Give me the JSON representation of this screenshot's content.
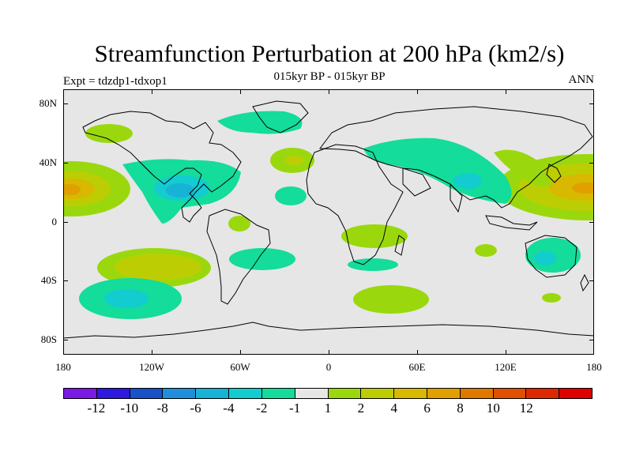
{
  "title": "Streamfunction Perturbation at 200 hPa (km2/s)",
  "subtitle": "015kyr BP - 015kyr BP",
  "left_label": "Expt = tdzdp1-tdxop1",
  "right_label": "ANN",
  "lat_labels": [
    "80N",
    "40N",
    "0",
    "40S",
    "80S"
  ],
  "lon_labels": [
    "180",
    "120W",
    "60W",
    "0",
    "60E",
    "120E",
    "180"
  ],
  "colorbar": {
    "colors": [
      "#7b19e6",
      "#2d19e0",
      "#1951c8",
      "#1f8fdc",
      "#17b3d6",
      "#12ccd0",
      "#14dc9a",
      "#e6e6e6",
      "#9ad80d",
      "#bcce03",
      "#d8b800",
      "#e0a000",
      "#e07800",
      "#e05000",
      "#e02800",
      "#e00000"
    ],
    "labels": [
      "-12",
      "-10",
      "-8",
      "-6",
      "-4",
      "-2",
      "-1",
      "1",
      "2",
      "4",
      "6",
      "8",
      "10",
      "12"
    ]
  },
  "map_data": {
    "type": "contour-fill map",
    "projection": "cylindrical equidistant",
    "background_color": "#e6e6e6",
    "coastline_color": "#000000"
  }
}
